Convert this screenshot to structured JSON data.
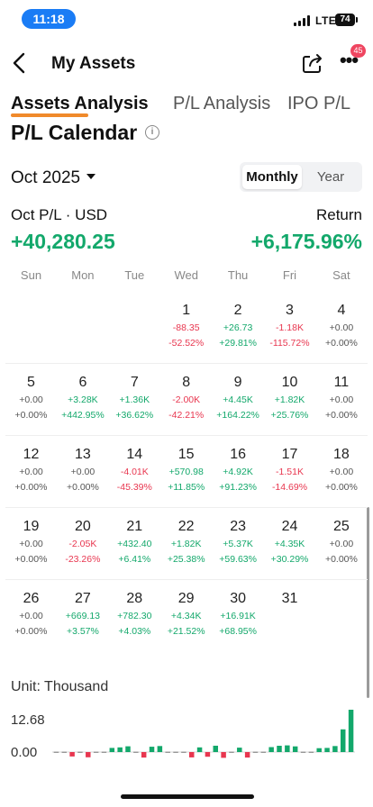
{
  "status_bar": {
    "time": "11:18",
    "network": "LTE",
    "battery": "74"
  },
  "nav": {
    "title": "My Assets",
    "badge_count": "45"
  },
  "tabs": [
    {
      "label": "Assets Analysis",
      "active": true
    },
    {
      "label": "P/L Analysis",
      "active": false
    },
    {
      "label": "IPO P/L",
      "active": false
    }
  ],
  "section_title": "P/L Calendar",
  "month": "Oct 2025",
  "view_toggle": {
    "monthly": "Monthly",
    "year": "Year",
    "selected": "Monthly"
  },
  "summary": {
    "pl_label": "Oct P/L · USD",
    "pl_value": "+40,280.25",
    "return_label": "Return",
    "return_value": "+6,175.96%"
  },
  "weekdays": [
    "Sun",
    "Mon",
    "Tue",
    "Wed",
    "Thu",
    "Fri",
    "Sat"
  ],
  "calendar": [
    [
      null,
      null,
      null,
      {
        "day": "1",
        "pl": "-88.35",
        "ret": "-52.52%"
      },
      {
        "day": "2",
        "pl": "+26.73",
        "ret": "+29.81%"
      },
      {
        "day": "3",
        "pl": "-1.18K",
        "ret": "-115.72%"
      },
      {
        "day": "4",
        "pl": "+0.00",
        "ret": "+0.00%"
      }
    ],
    [
      {
        "day": "5",
        "pl": "+0.00",
        "ret": "+0.00%"
      },
      {
        "day": "6",
        "pl": "+3.28K",
        "ret": "+442.95%"
      },
      {
        "day": "7",
        "pl": "+1.36K",
        "ret": "+36.62%"
      },
      {
        "day": "8",
        "pl": "-2.00K",
        "ret": "-42.21%"
      },
      {
        "day": "9",
        "pl": "+4.45K",
        "ret": "+164.22%"
      },
      {
        "day": "10",
        "pl": "+1.82K",
        "ret": "+25.76%"
      },
      {
        "day": "11",
        "pl": "+0.00",
        "ret": "+0.00%"
      }
    ],
    [
      {
        "day": "12",
        "pl": "+0.00",
        "ret": "+0.00%"
      },
      {
        "day": "13",
        "pl": "+0.00",
        "ret": "+0.00%"
      },
      {
        "day": "14",
        "pl": "-4.01K",
        "ret": "-45.39%"
      },
      {
        "day": "15",
        "pl": "+570.98",
        "ret": "+11.85%"
      },
      {
        "day": "16",
        "pl": "+4.92K",
        "ret": "+91.23%"
      },
      {
        "day": "17",
        "pl": "-1.51K",
        "ret": "-14.69%"
      },
      {
        "day": "18",
        "pl": "+0.00",
        "ret": "+0.00%"
      }
    ],
    [
      {
        "day": "19",
        "pl": "+0.00",
        "ret": "+0.00%"
      },
      {
        "day": "20",
        "pl": "-2.05K",
        "ret": "-23.26%"
      },
      {
        "day": "21",
        "pl": "+432.40",
        "ret": "+6.41%"
      },
      {
        "day": "22",
        "pl": "+1.82K",
        "ret": "+25.38%"
      },
      {
        "day": "23",
        "pl": "+5.37K",
        "ret": "+59.63%"
      },
      {
        "day": "24",
        "pl": "+4.35K",
        "ret": "+30.29%"
      },
      {
        "day": "25",
        "pl": "+0.00",
        "ret": "+0.00%"
      }
    ],
    [
      {
        "day": "26",
        "pl": "+0.00",
        "ret": "+0.00%"
      },
      {
        "day": "27",
        "pl": "+669.13",
        "ret": "+3.57%"
      },
      {
        "day": "28",
        "pl": "+782.30",
        "ret": "+4.03%"
      },
      {
        "day": "29",
        "pl": "+4.34K",
        "ret": "+21.52%"
      },
      {
        "day": "30",
        "pl": "+16.91K",
        "ret": "+68.95%"
      },
      {
        "day": "31",
        "pl": "",
        "ret": ""
      },
      null
    ]
  ],
  "chart_data": {
    "type": "bar",
    "unit_label": "Unit: Thousand",
    "ytick_labels": [
      "12.68",
      "0.00"
    ],
    "ylim": [
      -1.5,
      12.68
    ],
    "values": [
      0.0,
      0.0,
      -0.3,
      0.0,
      -0.6,
      0.0,
      0.0,
      0.2,
      1.4,
      0.8,
      0.0,
      -0.7,
      1.6,
      0.9,
      0.0,
      0.0,
      0.0,
      -1.6,
      0.4,
      -0.4,
      1.9,
      -0.8,
      0.0,
      0.3,
      -0.7,
      0.0,
      0.0,
      0.5,
      1.0,
      2.0,
      1.7,
      0.0,
      0.0,
      0.1,
      0.2,
      1.8,
      6.8,
      12.68
    ],
    "colors": {
      "positive": "#13a86b",
      "negative": "#e8364f"
    }
  }
}
